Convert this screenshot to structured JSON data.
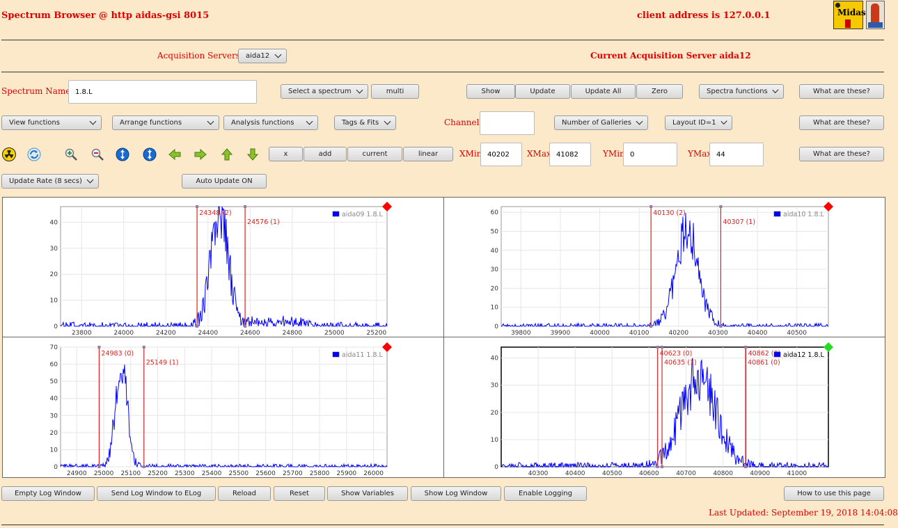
{
  "header": {
    "title": "Spectrum Browser @ http aidas-gsi 8015",
    "client_address": "client address is 127.0.0.1",
    "logo_text": "Midas"
  },
  "servers": {
    "label": "Acquisition Servers",
    "selected": "aida12",
    "current_label": "Current Acquisition Server aida12"
  },
  "row1": {
    "spectrum_name_label": "Spectrum Name:",
    "spectrum_name_value": "1.8.L",
    "select_spectrum": "Select a spectrum",
    "multi": "multi",
    "show": "Show",
    "update": "Update",
    "update_all": "Update All",
    "zero": "Zero",
    "spectra_functions": "Spectra functions",
    "what": "What are these?"
  },
  "row2": {
    "view_functions": "View functions",
    "arrange_functions": "Arrange functions",
    "analysis_functions": "Analysis functions",
    "tags_fits": "Tags & Fits",
    "channel_label": "Channel:",
    "channel_value": "",
    "galleries": "Number of Galleries",
    "layout": "Layout ID=1",
    "what": "What are these?"
  },
  "row3": {
    "x": "x",
    "add": "add",
    "current": "current",
    "linear": "linear",
    "xmin_label": "XMin",
    "xmin": "40202",
    "xmax_label": "XMax",
    "xmax": "41082",
    "ymin_label": "YMin",
    "ymin": "0",
    "ymax_label": "YMax",
    "ymax": "44",
    "what": "What are these?"
  },
  "row4": {
    "update_rate": "Update Rate (8 secs)",
    "auto_update": "Auto Update ON"
  },
  "icons": [
    "radiation-icon",
    "refresh-icon",
    "zoom-in-icon",
    "zoom-out-icon",
    "expand-vertical-icon",
    "compress-vertical-icon",
    "arrow-left-icon",
    "arrow-right-icon",
    "arrow-up-icon",
    "arrow-down-icon"
  ],
  "colors": {
    "trace": "#0000ff",
    "marker": "#e02020",
    "flag_red": "#ff0000",
    "flag_green": "#22dd22"
  },
  "chart_data": [
    {
      "type": "line",
      "series": [
        {
          "name": "aida09 1.8.L"
        }
      ],
      "xlim": [
        23700,
        25250
      ],
      "ylim": [
        0,
        46
      ],
      "xticks": [
        23800,
        24000,
        24200,
        24400,
        24600,
        24800,
        25000,
        25200
      ],
      "yticks": [
        0,
        10,
        20,
        30,
        40
      ],
      "peak": {
        "center": 24455,
        "sigma": 42,
        "height": 43
      },
      "tail": {
        "from": 24580,
        "to": 24900,
        "level": 2
      },
      "markers": [
        {
          "x": 24348,
          "label": "24348 (2)"
        },
        {
          "x": 24576,
          "label": "24576 (1)"
        }
      ],
      "flag": "red"
    },
    {
      "type": "line",
      "series": [
        {
          "name": "aida10 1.8.L"
        }
      ],
      "xlim": [
        39750,
        40580
      ],
      "ylim": [
        0,
        63
      ],
      "xticks": [
        39800,
        39900,
        40000,
        40100,
        40200,
        40300,
        40400,
        40500
      ],
      "yticks": [
        0,
        10,
        20,
        30,
        40,
        50,
        60
      ],
      "peak": {
        "center": 40222,
        "sigma": 28,
        "height": 51
      },
      "markers": [
        {
          "x": 40130,
          "label": "40130 (2)"
        },
        {
          "x": 40307,
          "label": "40307 (1)"
        }
      ],
      "flag": "red"
    },
    {
      "type": "line",
      "series": [
        {
          "name": "aida11 1.8.L"
        }
      ],
      "xlim": [
        24840,
        26050
      ],
      "ylim": [
        0,
        70
      ],
      "xticks": [
        24900,
        25000,
        25100,
        25200,
        25300,
        25400,
        25500,
        25600,
        25700,
        25800,
        25900,
        26000
      ],
      "yticks": [
        0,
        10,
        20,
        30,
        40,
        50,
        60,
        70
      ],
      "peak": {
        "center": 25065,
        "sigma": 22,
        "height": 60
      },
      "markers": [
        {
          "x": 24983,
          "label": "24983 (0)"
        },
        {
          "x": 25149,
          "label": "25149 (1)"
        }
      ],
      "flag": "red"
    },
    {
      "type": "line",
      "series": [
        {
          "name": "aida12 1.8.L"
        }
      ],
      "xlim": [
        40200,
        41085
      ],
      "ylim": [
        0,
        44
      ],
      "xticks": [
        40300,
        40400,
        40500,
        40600,
        40700,
        40800,
        40900,
        41000
      ],
      "yticks": [
        0,
        10,
        20,
        30,
        40
      ],
      "peak": {
        "center": 40735,
        "sigma": 48,
        "height": 33
      },
      "markers": [
        {
          "x": 40623,
          "label": "40623 (0)",
          "row": 0
        },
        {
          "x": 40635,
          "label": "40635 (1)",
          "row": 1
        },
        {
          "x": 40862,
          "label": "40862 (0)",
          "row": 0
        },
        {
          "x": 40861,
          "label": "40861 (0)",
          "row": 1
        }
      ],
      "flag": "green"
    }
  ],
  "footer": {
    "empty_log": "Empty Log Window",
    "send_log": "Send Log Window to ELog",
    "reload": "Reload",
    "reset": "Reset",
    "show_variables": "Show Variables",
    "show_log": "Show Log Window",
    "enable_logging": "Enable Logging",
    "how_to": "How to use this page",
    "last_updated": "Last Updated: September 19, 2018 14:04:08"
  }
}
